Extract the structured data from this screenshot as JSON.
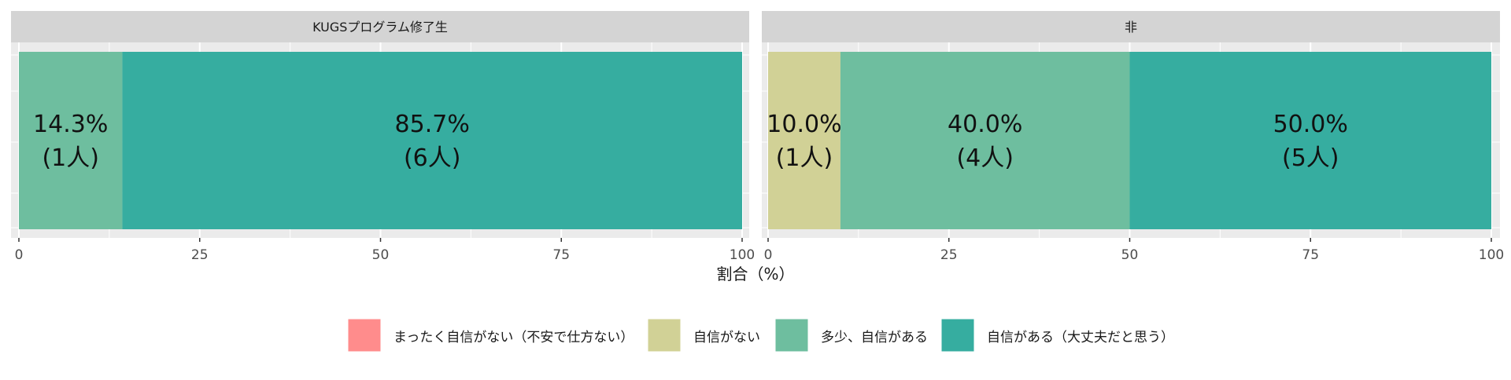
{
  "chart_data": {
    "type": "bar",
    "orientation": "horizontal",
    "stacked": true,
    "xlabel": "割合（%）",
    "xlim": [
      0,
      100
    ],
    "x_ticks": [
      "0",
      "25",
      "50",
      "75",
      "100"
    ],
    "grid": true,
    "legend_position": "bottom",
    "legend": [
      {
        "label": "まったく自信がない（不安で仕方ない）",
        "color": "#FF8C8C"
      },
      {
        "label": "自信がない",
        "color": "#D1D196"
      },
      {
        "label": "多少、自信がある",
        "color": "#6EBE9F"
      },
      {
        "label": "自信がある（大丈夫だと思う）",
        "color": "#36ADA0"
      }
    ],
    "panels": [
      {
        "title": "KUGSプログラム修了生",
        "segments": [
          {
            "category": "多少、自信がある",
            "value": 14.3,
            "label_pct": "14.3%",
            "label_n": "(1人)",
            "color": "#6EBE9F"
          },
          {
            "category": "自信がある（大丈夫だと思う）",
            "value": 85.7,
            "label_pct": "85.7%",
            "label_n": "(6人)",
            "color": "#36ADA0"
          }
        ]
      },
      {
        "title": "非",
        "segments": [
          {
            "category": "自信がない",
            "value": 10.0,
            "label_pct": "10.0%",
            "label_n": "(1人)",
            "color": "#D1D196"
          },
          {
            "category": "多少、自信がある",
            "value": 40.0,
            "label_pct": "40.0%",
            "label_n": "(4人)",
            "color": "#6EBE9F"
          },
          {
            "category": "自信がある（大丈夫だと思う）",
            "value": 50.0,
            "label_pct": "50.0%",
            "label_n": "(5人)",
            "color": "#36ADA0"
          }
        ]
      }
    ]
  }
}
